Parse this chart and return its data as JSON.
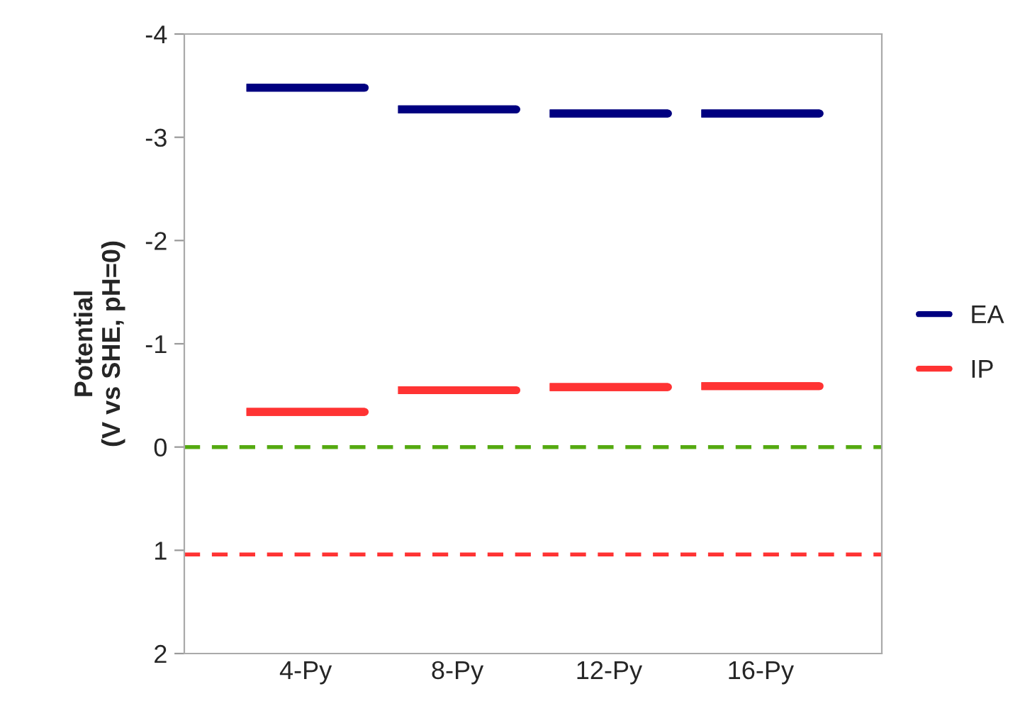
{
  "chart_data": {
    "type": "box",
    "ylabel": "Potential\n(V vs SHE, pH=0)",
    "categories": [
      "4-Py",
      "8-Py",
      "12-Py",
      "16-Py"
    ],
    "series": [
      {
        "name": "EA",
        "color": "#000080",
        "boxes": [
          {
            "low": -3.48,
            "q1": -3.48,
            "median": -3.48,
            "q3": -3.48,
            "high": -3.48
          },
          {
            "low": -3.27,
            "q1": -3.27,
            "median": -3.27,
            "q3": -3.27,
            "high": -3.27
          },
          {
            "low": -3.23,
            "q1": -3.23,
            "median": -3.23,
            "q3": -3.23,
            "high": -3.23
          },
          {
            "low": -3.23,
            "q1": -3.23,
            "median": -3.23,
            "q3": -3.23,
            "high": -3.23
          }
        ]
      },
      {
        "name": "IP",
        "color": "#ff3333",
        "boxes": [
          {
            "low": -0.34,
            "q1": -0.34,
            "median": -0.34,
            "q3": -0.34,
            "high": -0.34
          },
          {
            "low": -0.55,
            "q1": -0.55,
            "median": -0.55,
            "q3": -0.55,
            "high": -0.55
          },
          {
            "low": -0.58,
            "q1": -0.58,
            "median": -0.58,
            "q3": -0.58,
            "high": -0.58
          },
          {
            "low": -0.59,
            "q1": -0.59,
            "median": -0.59,
            "q3": -0.59,
            "high": -0.59
          }
        ]
      }
    ],
    "ylim": [
      2,
      -4
    ],
    "yticks": [
      -4,
      -3,
      -2,
      -1,
      0,
      1,
      2
    ],
    "ref_lines": [
      {
        "axis": "y",
        "value": 0,
        "label": null,
        "color": "#55aa11",
        "line_style": "dashed"
      },
      {
        "axis": "y",
        "value": 1.04,
        "label": null,
        "color": "#ff3333",
        "line_style": "dashed"
      }
    ],
    "grid": false,
    "legend": "right"
  }
}
